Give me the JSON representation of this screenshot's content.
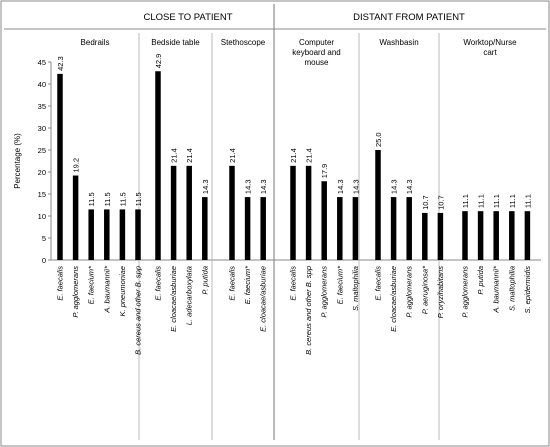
{
  "chart_data": {
    "type": "bar",
    "ylabel": "Percentage (%)",
    "ylim": [
      0,
      45
    ],
    "yticks": [
      0,
      5,
      10,
      15,
      20,
      25,
      30,
      35,
      40,
      45
    ],
    "bar_color": "#000000",
    "sections": [
      {
        "title": "CLOSE TO PATIENT",
        "groups": [
          {
            "title": "Bedrails",
            "categories": [
              "E. faecalis",
              "P. agglomerans",
              "E. faecium*",
              "A. baumannii*",
              "K. pneumoniae",
              "B. cereus and other B. spp"
            ],
            "values": [
              42.3,
              19.2,
              11.5,
              11.5,
              11.5,
              11.5
            ],
            "labels": [
              "42.3",
              "19.2",
              "11.5",
              "11.5",
              "11.5",
              "11.5"
            ]
          },
          {
            "title": "Bedside table",
            "categories": [
              "E. faecalis",
              "E. cloacae/asburiae",
              "L. adecarboxylata",
              "P. putida"
            ],
            "values": [
              42.9,
              21.4,
              21.4,
              14.3
            ],
            "labels": [
              "42.9",
              "21.4",
              "21.4",
              "14.3"
            ]
          },
          {
            "title": "Stethoscope",
            "categories": [
              "E. faecalis",
              "E. faecium*",
              "E. cloacae/asburiae"
            ],
            "values": [
              21.4,
              14.3,
              14.3
            ],
            "labels": [
              "21.4",
              "14.3",
              "14.3"
            ]
          }
        ]
      },
      {
        "title": "DISTANT FROM PATIENT",
        "groups": [
          {
            "title": "Computer keyboard and mouse",
            "categories": [
              "E. faecalis",
              "B. cereus and other B. spp",
              "P. agglomerans",
              "E. faecium*",
              "S. maltophilia"
            ],
            "values": [
              21.4,
              21.4,
              17.9,
              14.3,
              14.3
            ],
            "labels": [
              "21.4",
              "21.4",
              "17.9",
              "14.3",
              "14.3"
            ]
          },
          {
            "title": "Washbasin",
            "categories": [
              "E. faecalis",
              "E. cloacae/asburiae",
              "P. agglomerans",
              "P. aeruginosa*",
              "P. oryzihabitans"
            ],
            "values": [
              25.0,
              14.3,
              14.3,
              10.7,
              10.7
            ],
            "labels": [
              "25.0",
              "14.3",
              "14.3",
              "10.7",
              "10.7"
            ]
          },
          {
            "title": "Worktop/Nurse cart",
            "categories": [
              "P. agglomerans",
              "P. putida",
              "A. baumannii*",
              "S. maltophilia",
              "S. epidermidis"
            ],
            "values": [
              11.1,
              11.1,
              11.1,
              11.1,
              11.1
            ],
            "labels": [
              "11.1",
              "11.1",
              "11.1",
              "11.1",
              "11.1"
            ]
          }
        ]
      }
    ]
  }
}
